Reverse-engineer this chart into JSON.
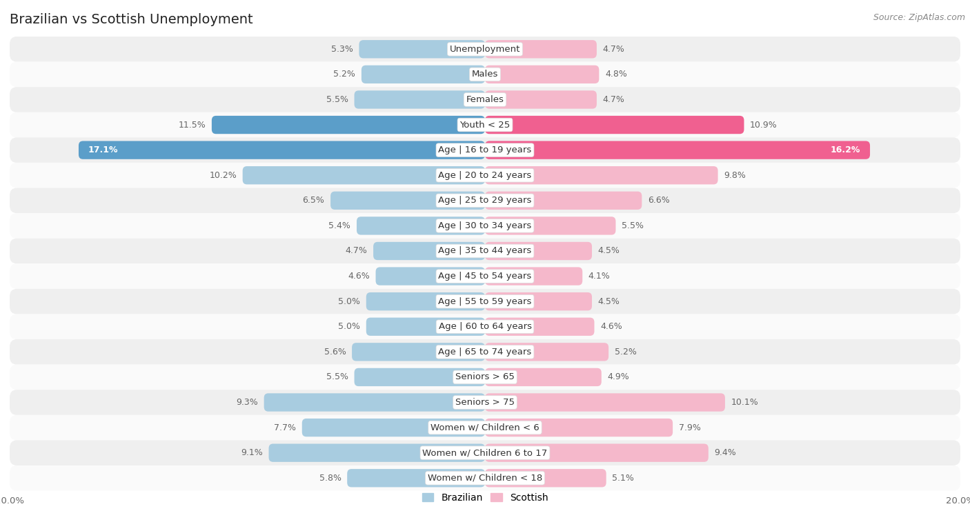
{
  "title": "Brazilian vs Scottish Unemployment",
  "source": "Source: ZipAtlas.com",
  "categories": [
    "Unemployment",
    "Males",
    "Females",
    "Youth < 25",
    "Age | 16 to 19 years",
    "Age | 20 to 24 years",
    "Age | 25 to 29 years",
    "Age | 30 to 34 years",
    "Age | 35 to 44 years",
    "Age | 45 to 54 years",
    "Age | 55 to 59 years",
    "Age | 60 to 64 years",
    "Age | 65 to 74 years",
    "Seniors > 65",
    "Seniors > 75",
    "Women w/ Children < 6",
    "Women w/ Children 6 to 17",
    "Women w/ Children < 18"
  ],
  "brazilian": [
    5.3,
    5.2,
    5.5,
    11.5,
    17.1,
    10.2,
    6.5,
    5.4,
    4.7,
    4.6,
    5.0,
    5.0,
    5.6,
    5.5,
    9.3,
    7.7,
    9.1,
    5.8
  ],
  "scottish": [
    4.7,
    4.8,
    4.7,
    10.9,
    16.2,
    9.8,
    6.6,
    5.5,
    4.5,
    4.1,
    4.5,
    4.6,
    5.2,
    4.9,
    10.1,
    7.9,
    9.4,
    5.1
  ],
  "brazilian_color_normal": "#a8cce0",
  "scottish_color_normal": "#f5b8cb",
  "brazilian_color_highlight": "#5b9ec9",
  "scottish_color_highlight": "#f06090",
  "highlight_rows": [
    3,
    4
  ],
  "label_color": "#666666",
  "value_color_normal": "#666666",
  "value_color_highlight_braz": "#ffffff",
  "row_bg_odd": "#efefef",
  "row_bg_even": "#fafafa",
  "axis_limit": 20.0,
  "title_fontsize": 14,
  "label_fontsize": 9.5,
  "value_fontsize": 9,
  "source_fontsize": 9,
  "legend_fontsize": 10,
  "background_color": "#ffffff"
}
